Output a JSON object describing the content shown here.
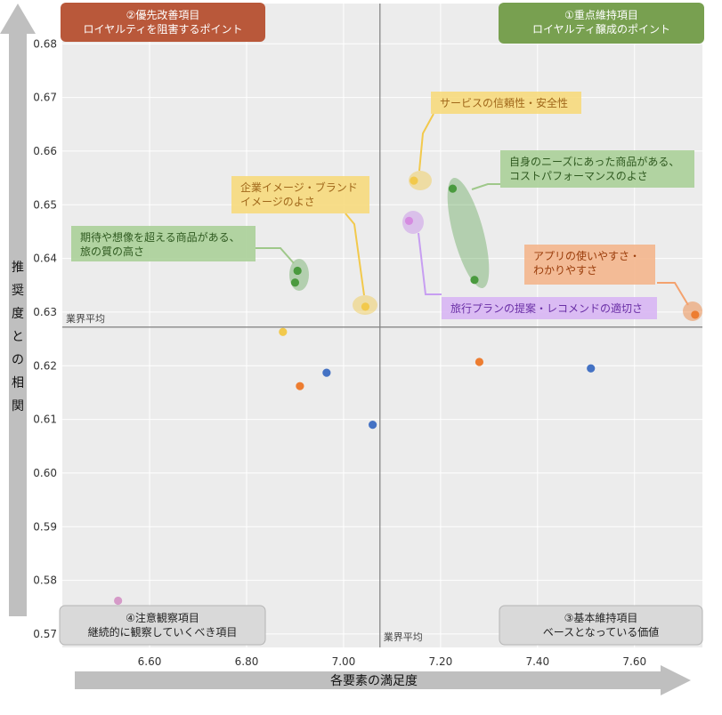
{
  "chart_data": {
    "type": "scatter",
    "x_label": "各要素の満足度",
    "y_label": "推奨度との相関",
    "x_ticks": [
      "6.60",
      "6.80",
      "7.00",
      "7.20",
      "7.40",
      "7.60"
    ],
    "y_ticks": [
      "0.57",
      "0.58",
      "0.59",
      "0.60",
      "0.61",
      "0.62",
      "0.63",
      "0.64",
      "0.65",
      "0.66",
      "0.67",
      "0.68"
    ],
    "x_range": [
      6.42,
      7.74
    ],
    "y_range": [
      0.5675,
      0.6875
    ],
    "average_x": 7.075,
    "average_y": 0.6272,
    "average_label": "業界平均",
    "grid": true,
    "points": [
      {
        "x": 7.145,
        "y": 0.6545,
        "color": "#f2c94c"
      },
      {
        "x": 7.045,
        "y": 0.631,
        "color": "#f2c94c"
      },
      {
        "x": 6.875,
        "y": 0.6263,
        "color": "#f2c94c"
      },
      {
        "x": 7.225,
        "y": 0.653,
        "color": "#4a9a3e"
      },
      {
        "x": 7.27,
        "y": 0.636,
        "color": "#4a9a3e"
      },
      {
        "x": 6.905,
        "y": 0.6377,
        "color": "#4a9a3e"
      },
      {
        "x": 6.9,
        "y": 0.6355,
        "color": "#4a9a3e"
      },
      {
        "x": 7.135,
        "y": 0.647,
        "color": "#d58be0"
      },
      {
        "x": 6.535,
        "y": 0.5762,
        "color": "#d59ac8"
      },
      {
        "x": 7.725,
        "y": 0.6295,
        "color": "#ed7d31"
      },
      {
        "x": 6.91,
        "y": 0.6162,
        "color": "#ed7d31"
      },
      {
        "x": 7.28,
        "y": 0.6207,
        "color": "#ed7d31"
      },
      {
        "x": 6.965,
        "y": 0.6187,
        "color": "#4472c4"
      },
      {
        "x": 7.51,
        "y": 0.6195,
        "color": "#4472c4"
      },
      {
        "x": 7.06,
        "y": 0.609,
        "color": "#4472c4"
      }
    ],
    "quadrants": [
      {
        "line1": "②優先改善項目",
        "line2": "ロイヤルティを阻害するポイント",
        "color": "#b9583a"
      },
      {
        "line1": "①重点維持項目",
        "line2": "ロイヤルティ醸成のポイント",
        "color": "#78a050"
      },
      {
        "line1": "④注意観察項目",
        "line2": "継続的に観察していくべき項目",
        "color": "#d9d9d9"
      },
      {
        "line1": "③基本維持項目",
        "line2": "ベースとなっている価値",
        "color": "#d9d9d9"
      }
    ],
    "callouts": [
      {
        "lines": [
          "サービスの信頼性・安全性"
        ],
        "color": "#f7d97a",
        "text_color": "#a0671a"
      },
      {
        "lines": [
          "企業イメージ・ブランド",
          "イメージのよさ"
        ],
        "color": "#f7d97a",
        "text_color": "#a0671a"
      },
      {
        "lines": [
          "自身のニーズにあった商品がある、",
          "コストパフォーマンスのよさ"
        ],
        "color": "#a9cf96",
        "text_color": "#2f5a20"
      },
      {
        "lines": [
          "期待や想像を超える商品がある、",
          "旅の質の高さ"
        ],
        "color": "#a9cf96",
        "text_color": "#2f5a20"
      },
      {
        "lines": [
          "アプリの使いやすさ・",
          "わかりやすさ"
        ],
        "color": "#f4b48a",
        "text_color": "#9a3c0a"
      },
      {
        "lines": [
          "旅行プランの提案・レコメンドの適切さ"
        ],
        "color": "#d7b4f4",
        "text_color": "#6a2fa6"
      }
    ]
  }
}
